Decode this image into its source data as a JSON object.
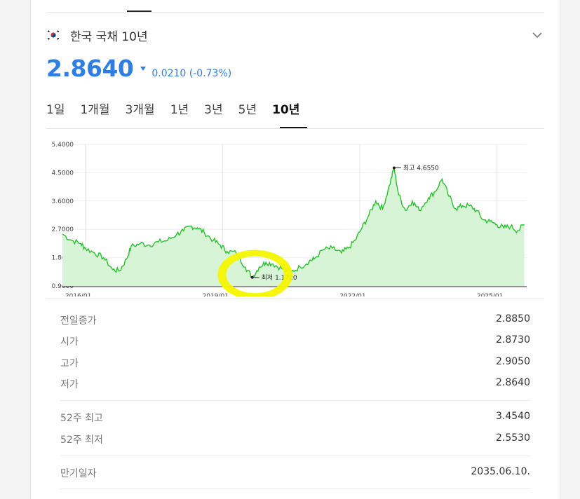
{
  "instrument": {
    "title": "한국 국채 10년",
    "flag_icon": "south-korea-flag-icon",
    "price": "2.8640",
    "change": "0.0210 (-0.73%)",
    "direction": "down",
    "price_color": "#2f7fe3"
  },
  "range_tabs": [
    {
      "label": "1일"
    },
    {
      "label": "1개월"
    },
    {
      "label": "3개월"
    },
    {
      "label": "1년"
    },
    {
      "label": "3년"
    },
    {
      "label": "5년"
    },
    {
      "label": "10년",
      "active": true
    }
  ],
  "chart_data": {
    "type": "area",
    "series_color": "#27c02b",
    "fill_color": "#d8f4d6",
    "y_ticks": [
      "5.4000",
      "4.5000",
      "3.6000",
      "2.7000",
      "1.8000",
      "0.9000"
    ],
    "ylim": [
      0.9,
      5.4
    ],
    "x_ticks": [
      "2016/01",
      "2019/01",
      "2022/01",
      "2025/01"
    ],
    "grid": true,
    "annotations": [
      {
        "label": "최고 4.6550",
        "x": 2022.75,
        "y": 4.655
      },
      {
        "label": "최저 1.1720",
        "x": 2019.65,
        "y": 1.172
      }
    ],
    "points": [
      [
        2015.5,
        2.55
      ],
      [
        2015.7,
        2.35
      ],
      [
        2015.9,
        2.25
      ],
      [
        2016.0,
        2.1
      ],
      [
        2016.2,
        1.95
      ],
      [
        2016.4,
        1.8
      ],
      [
        2016.6,
        1.42
      ],
      [
        2016.75,
        1.38
      ],
      [
        2016.9,
        1.75
      ],
      [
        2017.0,
        2.15
      ],
      [
        2017.2,
        2.25
      ],
      [
        2017.4,
        2.2
      ],
      [
        2017.6,
        2.3
      ],
      [
        2017.8,
        2.35
      ],
      [
        2018.0,
        2.55
      ],
      [
        2018.15,
        2.65
      ],
      [
        2018.3,
        2.8
      ],
      [
        2018.45,
        2.75
      ],
      [
        2018.6,
        2.6
      ],
      [
        2018.8,
        2.35
      ],
      [
        2018.95,
        2.2
      ],
      [
        2019.1,
        2.0
      ],
      [
        2019.3,
        1.95
      ],
      [
        2019.5,
        1.5
      ],
      [
        2019.65,
        1.172
      ],
      [
        2019.8,
        1.5
      ],
      [
        2019.95,
        1.65
      ],
      [
        2020.1,
        1.6
      ],
      [
        2020.3,
        1.45
      ],
      [
        2020.5,
        1.35
      ],
      [
        2020.7,
        1.5
      ],
      [
        2020.9,
        1.7
      ],
      [
        2021.0,
        1.75
      ],
      [
        2021.2,
        2.05
      ],
      [
        2021.4,
        2.1
      ],
      [
        2021.6,
        1.95
      ],
      [
        2021.75,
        2.1
      ],
      [
        2021.9,
        2.35
      ],
      [
        2022.05,
        2.75
      ],
      [
        2022.2,
        3.15
      ],
      [
        2022.35,
        3.6
      ],
      [
        2022.5,
        3.35
      ],
      [
        2022.65,
        4.1
      ],
      [
        2022.75,
        4.655
      ],
      [
        2022.85,
        3.8
      ],
      [
        2023.0,
        3.3
      ],
      [
        2023.15,
        3.6
      ],
      [
        2023.3,
        3.3
      ],
      [
        2023.5,
        3.7
      ],
      [
        2023.65,
        3.9
      ],
      [
        2023.8,
        4.3
      ],
      [
        2023.95,
        3.75
      ],
      [
        2024.1,
        3.35
      ],
      [
        2024.25,
        3.45
      ],
      [
        2024.4,
        3.45
      ],
      [
        2024.55,
        3.3
      ],
      [
        2024.7,
        3.0
      ],
      [
        2024.85,
        2.95
      ],
      [
        2025.0,
        2.85
      ],
      [
        2025.15,
        2.75
      ],
      [
        2025.3,
        2.8
      ],
      [
        2025.45,
        2.65
      ],
      [
        2025.6,
        2.85
      ]
    ]
  },
  "stats": {
    "prev_close_label": "전일종가",
    "prev_close": "2.8850",
    "open_label": "시가",
    "open": "2.8730",
    "high_label": "고가",
    "high": "2.9050",
    "low_label": "저가",
    "low": "2.8640",
    "wk52_high_label": "52주 최고",
    "wk52_high": "3.4540",
    "wk52_low_label": "52주 최저",
    "wk52_low": "2.5530",
    "maturity_label": "만기일자",
    "maturity": "2035.06.10."
  }
}
